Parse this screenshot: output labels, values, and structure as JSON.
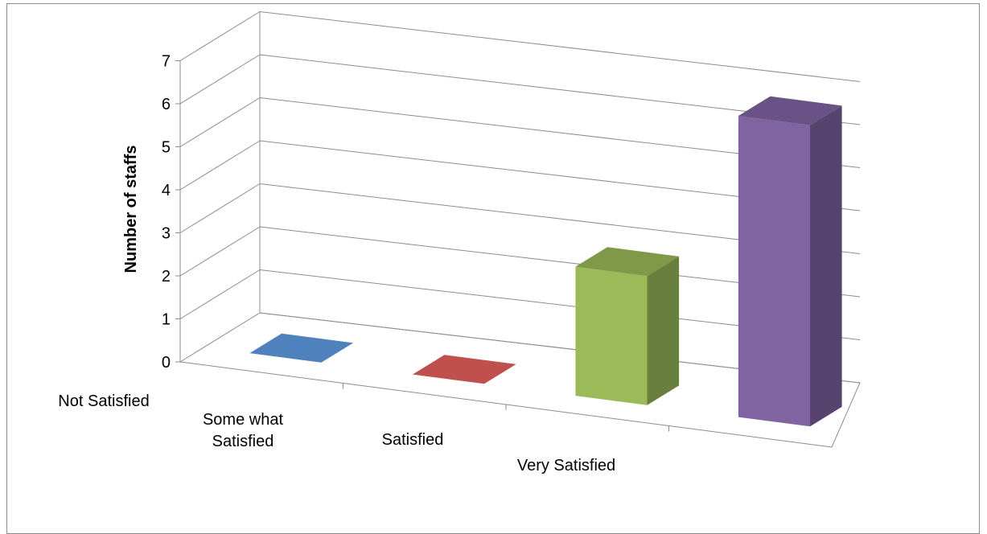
{
  "chart_data": {
    "type": "bar",
    "style": "3d-column",
    "categories": [
      "Not Satisfied",
      "Some what Satisfied",
      "Satisfied",
      "Very Satisfied"
    ],
    "category_lines": [
      [
        "Not Satisfied"
      ],
      [
        "Some what",
        "Satisfied"
      ],
      [
        "Satisfied"
      ],
      [
        "Very Satisfied"
      ]
    ],
    "values": [
      0,
      0,
      3,
      7
    ],
    "colors": [
      "#4F81BD",
      "#C0504D",
      "#9BBB59",
      "#8064A2"
    ],
    "xlabel": "",
    "ylabel": "Number of staffs",
    "ylim": [
      0,
      7
    ],
    "yticks": [
      "0",
      "1",
      "2",
      "3",
      "4",
      "5",
      "6",
      "7"
    ],
    "grid": true,
    "legend": "none"
  }
}
